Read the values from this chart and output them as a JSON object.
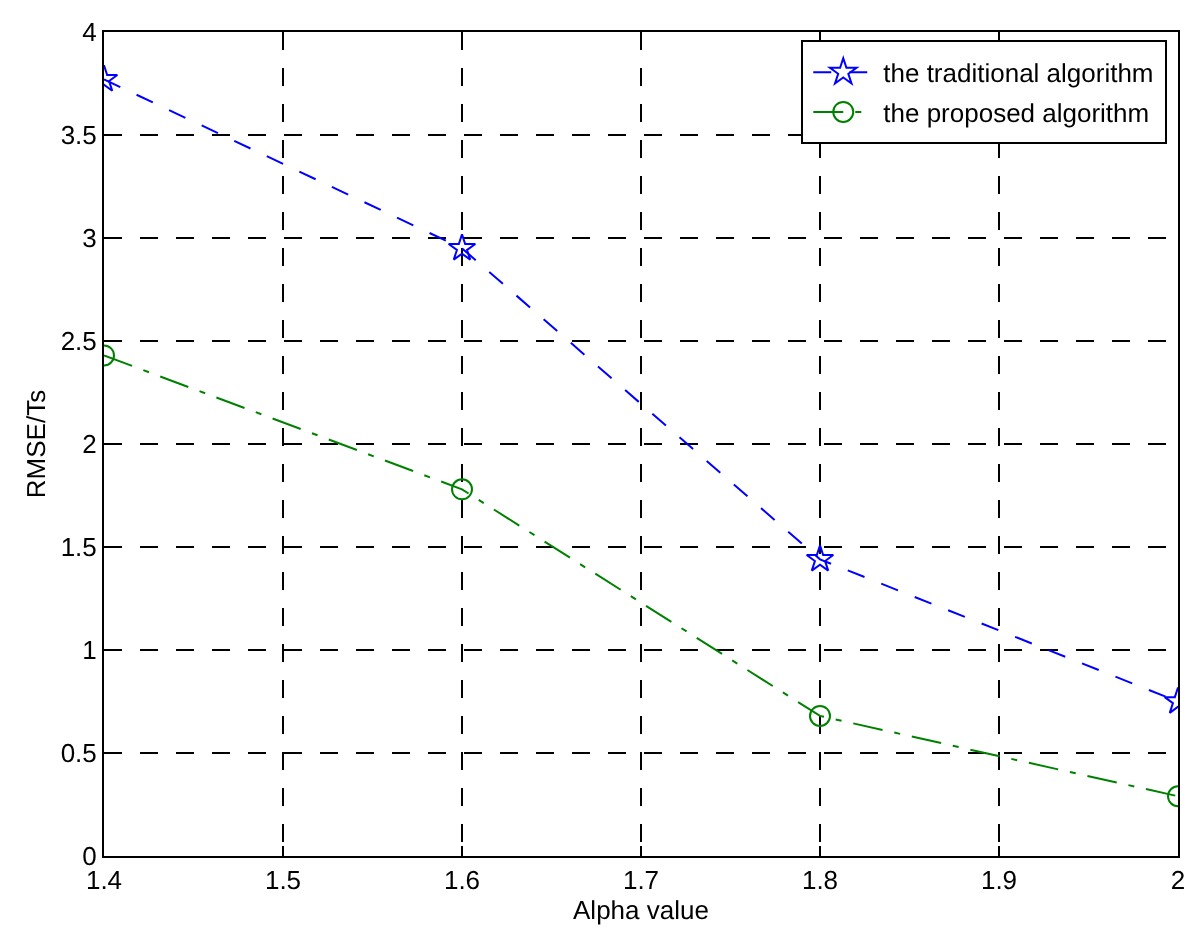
{
  "chart_data": {
    "type": "line",
    "xlabel": "Alpha value",
    "ylabel": "RMSE/Ts",
    "x": [
      1.4,
      1.6,
      1.8,
      2.0
    ],
    "series": [
      {
        "name": "the traditional algorithm",
        "color": "#0000ff",
        "values": [
          3.77,
          2.95,
          1.44,
          0.75
        ],
        "marker": "star",
        "line_style": "dashed"
      },
      {
        "name": "the proposed algorithm",
        "color": "#008000",
        "values": [
          2.43,
          1.78,
          0.68,
          0.29
        ],
        "marker": "circle",
        "line_style": "dashdot"
      }
    ],
    "xlim": [
      1.4,
      2.0
    ],
    "xticks": [
      1.4,
      1.5,
      1.6,
      1.7,
      1.8,
      1.9,
      2
    ],
    "ylim": [
      0,
      4
    ],
    "yticks": [
      0,
      0.5,
      1,
      1.5,
      2,
      2.5,
      3,
      3.5,
      4
    ],
    "grid": true,
    "legend": "top right"
  }
}
